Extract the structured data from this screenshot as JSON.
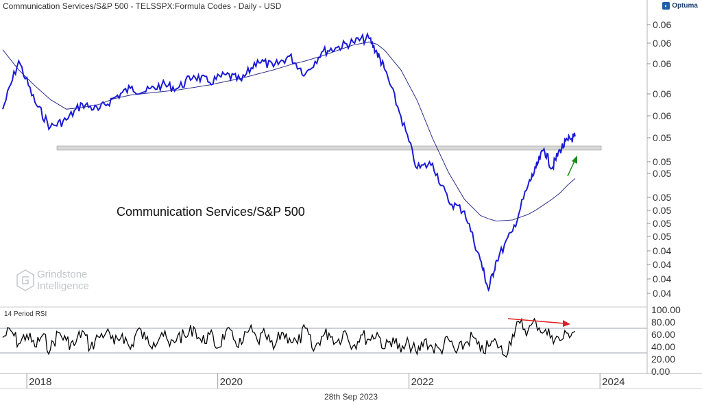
{
  "header": {
    "title": "Communication Services/S&P 500 - TELSSPX:Formula Codes - Daily - USD",
    "brand": "Optuma",
    "brand_icon": "optuma-logo-icon"
  },
  "date_label": "28th Sep 2023",
  "watermark": {
    "line1": "Grindstone",
    "line2": "Intelligence"
  },
  "colors": {
    "price": "#1a1ad6",
    "moving_average": "#2b2e8a",
    "rsi": "#000000",
    "support_zone": "#d9d9d9",
    "divergence_arrow": "#e02020",
    "breakout_arrow": "#1c8a1c",
    "grid_line": "#cfd6e0"
  },
  "chart_data": [
    {
      "type": "line",
      "title": "Communication Services/S&P 500",
      "xlabel": "",
      "ylabel": "",
      "x_ticks": [
        "2018",
        "2020",
        "2022",
        "2024"
      ],
      "y_ticks": [
        "0.06",
        "0.06",
        "0.06",
        "0.06",
        "0.06",
        "0.05",
        "0.05",
        "0.05",
        "0.05",
        "0.05",
        "0.05",
        "0.05",
        "0.04",
        "0.04",
        "0.04",
        "0.04"
      ],
      "ylim": [
        0.0385,
        0.0665
      ],
      "scale": "log",
      "grid": false,
      "x": [
        "2017-10-01",
        "2017-12-01",
        "2018-02-01",
        "2018-04-01",
        "2018-06-01",
        "2018-08-01",
        "2018-10-01",
        "2018-12-01",
        "2019-02-01",
        "2019-04-01",
        "2019-06-01",
        "2019-08-01",
        "2019-10-01",
        "2019-12-01",
        "2020-02-01",
        "2020-04-01",
        "2020-06-01",
        "2020-08-01",
        "2020-10-01",
        "2020-12-01",
        "2021-02-01",
        "2021-04-01",
        "2021-06-01",
        "2021-08-01",
        "2021-09-01",
        "2021-10-01",
        "2021-12-01",
        "2022-02-01",
        "2022-04-01",
        "2022-06-01",
        "2022-08-01",
        "2022-10-01",
        "2022-11-01",
        "2022-12-01",
        "2023-02-01",
        "2023-04-01",
        "2023-05-01",
        "2023-06-01",
        "2023-07-01",
        "2023-08-01",
        "2023-09-01",
        "2023-09-28"
      ],
      "series": [
        {
          "values": [
            0.0565,
            0.0622,
            0.0573,
            0.0545,
            0.0553,
            0.0571,
            0.0564,
            0.0578,
            0.0589,
            0.0585,
            0.0593,
            0.0589,
            0.0604,
            0.0596,
            0.0605,
            0.0598,
            0.0623,
            0.0615,
            0.0628,
            0.0606,
            0.0633,
            0.0639,
            0.0646,
            0.0651,
            0.0632,
            0.0611,
            0.0557,
            0.0502,
            0.0507,
            0.047,
            0.0461,
            0.0418,
            0.0394,
            0.0418,
            0.0443,
            0.0485,
            0.0502,
            0.0522,
            0.0502,
            0.0521,
            0.0531,
            0.0535
          ]
        },
        {
          "values": [
            0.0636,
            0.0611,
            0.0592,
            0.0576,
            0.0565,
            0.0567,
            0.057,
            0.0577,
            0.0581,
            0.0583,
            0.0585,
            0.0587,
            0.059,
            0.0593,
            0.0597,
            0.0601,
            0.0606,
            0.0611,
            0.0617,
            0.0622,
            0.0628,
            0.0635,
            0.0642,
            0.0646,
            0.0643,
            0.0635,
            0.0611,
            0.0575,
            0.0533,
            0.0498,
            0.0472,
            0.0457,
            0.0454,
            0.0452,
            0.0453,
            0.0458,
            0.0462,
            0.0467,
            0.0472,
            0.0478,
            0.0486,
            0.0492
          ]
        }
      ],
      "support_zone": [
        0.0521,
        0.0525
      ]
    },
    {
      "type": "line",
      "title": "14 Period RSI",
      "xlabel": "",
      "ylabel": "",
      "y_ticks": [
        "100.00",
        "80.00",
        "60.00",
        "40.00",
        "20.00",
        "0.00"
      ],
      "ylim": [
        0,
        100
      ],
      "reference_lines": [
        70,
        30
      ],
      "x": [
        "2017-10-01",
        "2017-11-01",
        "2017-12-01",
        "2018-01-01",
        "2018-02-01",
        "2018-03-01",
        "2018-04-01",
        "2018-05-01",
        "2018-06-01",
        "2018-07-01",
        "2018-08-01",
        "2018-09-01",
        "2018-10-01",
        "2018-11-01",
        "2018-12-01",
        "2019-01-01",
        "2019-02-01",
        "2019-03-01",
        "2019-04-01",
        "2019-05-01",
        "2019-06-01",
        "2019-07-01",
        "2019-08-01",
        "2019-09-01",
        "2019-10-01",
        "2019-11-01",
        "2019-12-01",
        "2020-01-01",
        "2020-02-01",
        "2020-03-01",
        "2020-04-01",
        "2020-05-01",
        "2020-06-01",
        "2020-07-01",
        "2020-08-01",
        "2020-09-01",
        "2020-10-01",
        "2020-11-01",
        "2020-12-01",
        "2021-01-01",
        "2021-02-01",
        "2021-03-01",
        "2021-04-01",
        "2021-05-01",
        "2021-06-01",
        "2021-07-01",
        "2021-08-01",
        "2021-09-01",
        "2021-10-01",
        "2021-11-01",
        "2021-12-01",
        "2022-01-01",
        "2022-02-01",
        "2022-03-01",
        "2022-04-01",
        "2022-05-01",
        "2022-06-01",
        "2022-07-01",
        "2022-08-01",
        "2022-09-01",
        "2022-10-01",
        "2022-11-01",
        "2022-12-01",
        "2023-01-01",
        "2023-02-01",
        "2023-03-01",
        "2023-04-01",
        "2023-05-01",
        "2023-06-01",
        "2023-07-01",
        "2023-08-01",
        "2023-09-01",
        "2023-09-28"
      ],
      "series": [
        {
          "values": [
            55,
            66,
            45,
            60,
            40,
            58,
            35,
            63,
            50,
            42,
            66,
            38,
            56,
            64,
            44,
            61,
            36,
            68,
            52,
            47,
            63,
            41,
            58,
            55,
            72,
            47,
            60,
            38,
            65,
            52,
            44,
            68,
            49,
            59,
            36,
            63,
            54,
            45,
            70,
            33,
            57,
            62,
            48,
            66,
            41,
            59,
            52,
            63,
            37,
            55,
            31,
            46,
            28,
            51,
            38,
            35,
            52,
            30,
            44,
            57,
            32,
            41,
            48,
            26,
            60,
            78,
            66,
            80,
            64,
            58,
            50,
            62,
            65
          ]
        }
      ]
    }
  ],
  "annotations": {
    "breakout_arrow": "up-right-arrow",
    "divergence_arrow": "down-right-arrow"
  }
}
